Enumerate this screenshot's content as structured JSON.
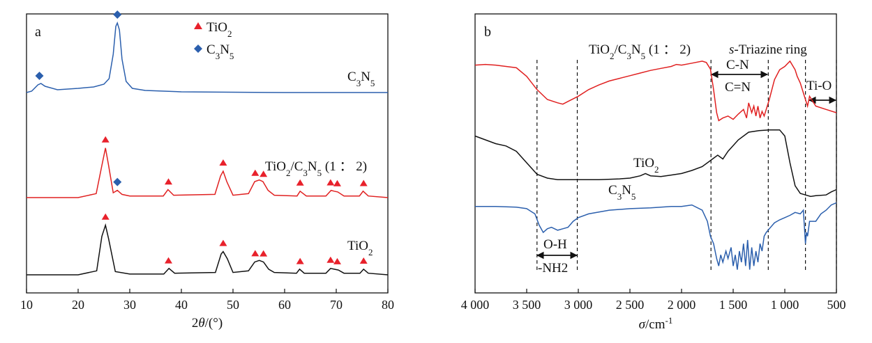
{
  "chart_data": [
    {
      "type": "line",
      "panel_label": "a",
      "xlabel": "2θ/(°)",
      "xlim": [
        10,
        80
      ],
      "x_ticks": [
        "10",
        "20",
        "30",
        "40",
        "50",
        "60",
        "70",
        "80"
      ],
      "y_ticks": [],
      "legend": {
        "placement": "top-center",
        "entries": [
          {
            "marker": "red-triangle",
            "label": "TiO2"
          },
          {
            "marker": "blue-diamond",
            "label": "C3N5"
          }
        ]
      },
      "series": [
        {
          "name": "C3N5",
          "color": "#2b5fad",
          "x": [
            10,
            11,
            12.2,
            12.8,
            13.6,
            16,
            20,
            23,
            25,
            26,
            26.8,
            27.3,
            27.6,
            28.0,
            28.5,
            29.3,
            30.5,
            33,
            40,
            60,
            80
          ],
          "y": [
            0.0,
            0.02,
            0.11,
            0.13,
            0.09,
            0.04,
            0.06,
            0.08,
            0.12,
            0.2,
            0.55,
            0.95,
            1.0,
            0.9,
            0.48,
            0.16,
            0.06,
            0.03,
            0.01,
            0.0,
            0.0
          ],
          "peak_markers": [
            12.5,
            27.6
          ]
        },
        {
          "name": "TiO2/C3N5 (1 : 2)",
          "color": "#e02020",
          "x": [
            10,
            20,
            23.5,
            24.6,
            25.3,
            25.9,
            26.8,
            27.6,
            28.5,
            30,
            36.5,
            37.4,
            38.5,
            46.5,
            47.6,
            48.1,
            48.8,
            50,
            53,
            54.2,
            55.1,
            55.8,
            56.8,
            58,
            62.4,
            63.0,
            64.2,
            68,
            69.0,
            69.6,
            70.3,
            71.5,
            74.5,
            75.2,
            76.2,
            80
          ],
          "y": [
            0.0,
            0.0,
            0.05,
            0.4,
            0.62,
            0.4,
            0.06,
            0.09,
            0.04,
            0.02,
            0.02,
            0.1,
            0.03,
            0.04,
            0.27,
            0.33,
            0.2,
            0.03,
            0.05,
            0.2,
            0.22,
            0.2,
            0.09,
            0.03,
            0.02,
            0.08,
            0.02,
            0.02,
            0.09,
            0.08,
            0.07,
            0.02,
            0.02,
            0.08,
            0.02,
            0.0
          ],
          "peak_markers": [
            25.3,
            27.6,
            37.5,
            48.1,
            54.3,
            55.9,
            63.0,
            68.9,
            70.2,
            75.3
          ]
        },
        {
          "name": "TiO2",
          "color": "#111111",
          "x": [
            10,
            20,
            23.6,
            24.6,
            25.3,
            25.9,
            27.2,
            30,
            36.6,
            37.6,
            38.7,
            46.6,
            47.7,
            48.1,
            48.9,
            50,
            53,
            54.2,
            55.1,
            55.9,
            56.9,
            58,
            62.3,
            62.9,
            63.8,
            68,
            68.9,
            69.6,
            70.4,
            71.5,
            74.6,
            75.3,
            76.2,
            80
          ],
          "y": [
            0.0,
            0.0,
            0.05,
            0.48,
            0.62,
            0.45,
            0.04,
            0.01,
            0.01,
            0.08,
            0.02,
            0.03,
            0.26,
            0.29,
            0.2,
            0.03,
            0.05,
            0.16,
            0.18,
            0.16,
            0.07,
            0.03,
            0.02,
            0.07,
            0.02,
            0.02,
            0.08,
            0.07,
            0.06,
            0.02,
            0.02,
            0.07,
            0.02,
            0.0
          ],
          "peak_markers": [
            25.3,
            37.5,
            48.1,
            54.3,
            55.9,
            63.0,
            68.9,
            70.2,
            75.3
          ]
        }
      ]
    },
    {
      "type": "line",
      "panel_label": "b",
      "xlabel": "σ/cm⁻¹",
      "xlim": [
        4000,
        500
      ],
      "x_ticks": [
        "4 000",
        "3 500",
        "3 000",
        "2 500",
        "2 000",
        "1 500",
        "1 000",
        "500"
      ],
      "y_ticks": [],
      "series": [
        {
          "name": "TiO2/C3N5 (1 : 2)",
          "color": "#e02020",
          "x": [
            4000,
            3900,
            3800,
            3700,
            3600,
            3500,
            3400,
            3300,
            3200,
            3150,
            3100,
            3000,
            2900,
            2800,
            2700,
            2600,
            2500,
            2400,
            2300,
            2200,
            2100,
            2050,
            2000,
            1900,
            1800,
            1760,
            1720,
            1690,
            1660,
            1640,
            1600,
            1550,
            1500,
            1450,
            1400,
            1370,
            1350,
            1320,
            1300,
            1280,
            1260,
            1240,
            1220,
            1200,
            1150,
            1100,
            1050,
            1000,
            950,
            900,
            880,
            850,
            820,
            800,
            780,
            760,
            700,
            600,
            500
          ],
          "y": [
            0.92,
            0.93,
            0.92,
            0.9,
            0.88,
            0.75,
            0.55,
            0.4,
            0.35,
            0.33,
            0.37,
            0.45,
            0.55,
            0.62,
            0.68,
            0.72,
            0.76,
            0.8,
            0.84,
            0.87,
            0.9,
            0.93,
            0.92,
            0.95,
            0.98,
            0.96,
            0.86,
            0.55,
            0.2,
            0.08,
            0.12,
            0.15,
            0.1,
            0.18,
            0.25,
            0.12,
            0.35,
            0.2,
            0.3,
            0.15,
            0.3,
            0.12,
            0.22,
            0.15,
            0.4,
            0.7,
            0.85,
            0.9,
            0.98,
            0.85,
            0.75,
            0.65,
            0.5,
            0.4,
            0.3,
            0.45,
            0.3,
            0.25,
            0.2
          ]
        },
        {
          "name": "TiO2",
          "color": "#111111",
          "x": [
            4000,
            3900,
            3800,
            3700,
            3600,
            3500,
            3400,
            3300,
            3200,
            3000,
            2800,
            2600,
            2500,
            2400,
            2350,
            2300,
            2200,
            2100,
            2000,
            1900,
            1800,
            1700,
            1650,
            1600,
            1550,
            1450,
            1350,
            1250,
            1150,
            1050,
            1000,
            950,
            900,
            850,
            800,
            750,
            700,
            600,
            550,
            500
          ],
          "y": [
            0.85,
            0.8,
            0.75,
            0.72,
            0.65,
            0.5,
            0.35,
            0.3,
            0.28,
            0.28,
            0.28,
            0.29,
            0.3,
            0.33,
            0.36,
            0.33,
            0.32,
            0.34,
            0.36,
            0.4,
            0.45,
            0.55,
            0.6,
            0.55,
            0.65,
            0.8,
            0.9,
            0.92,
            0.93,
            0.93,
            0.85,
            0.5,
            0.2,
            0.1,
            0.08,
            0.06,
            0.07,
            0.08,
            0.12,
            0.15
          ]
        },
        {
          "name": "C3N5",
          "color": "#2b5fad",
          "x": [
            4000,
            3800,
            3600,
            3500,
            3420,
            3380,
            3340,
            3300,
            3260,
            3200,
            3150,
            3100,
            3050,
            3000,
            2900,
            2700,
            2500,
            2300,
            2100,
            2000,
            1900,
            1800,
            1750,
            1720,
            1690,
            1660,
            1640,
            1620,
            1600,
            1570,
            1550,
            1520,
            1500,
            1480,
            1460,
            1440,
            1420,
            1400,
            1380,
            1360,
            1340,
            1320,
            1300,
            1280,
            1260,
            1240,
            1220,
            1200,
            1180,
            1150,
            1100,
            1050,
            1000,
            950,
            900,
            850,
            820,
            800,
            790,
            780,
            760,
            700,
            650,
            600,
            550,
            500
          ],
          "y": [
            0.9,
            0.9,
            0.89,
            0.87,
            0.8,
            0.65,
            0.55,
            0.6,
            0.62,
            0.58,
            0.6,
            0.62,
            0.7,
            0.75,
            0.8,
            0.85,
            0.87,
            0.88,
            0.9,
            0.9,
            0.92,
            0.85,
            0.7,
            0.5,
            0.4,
            0.2,
            0.1,
            0.25,
            0.15,
            0.3,
            0.2,
            0.35,
            0.1,
            0.25,
            0.05,
            0.3,
            0.15,
            0.4,
            0.1,
            0.45,
            0.05,
            0.35,
            0.1,
            0.3,
            0.15,
            0.4,
            0.3,
            0.5,
            0.55,
            0.6,
            0.68,
            0.72,
            0.75,
            0.78,
            0.82,
            0.8,
            0.85,
            0.4,
            0.55,
            0.5,
            0.7,
            0.7,
            0.8,
            0.85,
            0.92,
            0.95
          ]
        }
      ],
      "reference_lines": [
        3400,
        3010,
        1715,
        1160,
        800,
        500
      ],
      "annotations": {
        "oh_top": "O-H",
        "oh_bottom": "-NH2",
        "cn_top": "C-N",
        "cn_bottom": "C=N",
        "tio": "Ti-O",
        "triazine_italic": "s",
        "triazine_rest": "-Triazine ring"
      }
    }
  ],
  "labels": {
    "panel_a": "a",
    "panel_b": "b",
    "xlabel_a_pre": "2",
    "xlabel_a_theta": "θ",
    "xlabel_a_post": "/(°)",
    "xlabel_b_sigma": "σ",
    "xlabel_b_unit": "/cm",
    "xlabel_b_exp": "-1",
    "ti": "TiO",
    "c": "C",
    "n": "N",
    "sub2": "2",
    "sub3": "3",
    "sub5": "5",
    "ratio": " (1 ： 2)",
    "slash": "/"
  }
}
